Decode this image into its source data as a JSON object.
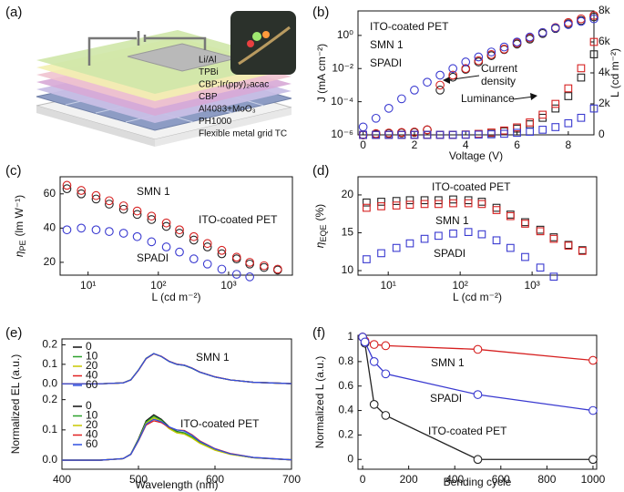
{
  "diagram": {
    "panel": "(a)",
    "layers": [
      "Li/Al",
      "TPBi",
      "CBP:Ir(ppy)₂acac",
      "CBP",
      "Al4083+MoO₃",
      "PH1000",
      "Flexible metal grid TC"
    ]
  },
  "chart_data": [
    {
      "type": "scatter",
      "panel": "(b)",
      "marker": "circle",
      "connect": false,
      "xlabel": "Voltage (V)",
      "ylabel": "J (mA cm⁻²)",
      "y2label": "L (cd m⁻²)",
      "yscale": "log",
      "xlim": [
        -0.2,
        9
      ],
      "xticks": [
        0,
        2,
        4,
        6,
        8
      ],
      "ylim": [
        1e-06,
        30
      ],
      "yticks": [
        {
          "value": 1e-06,
          "label": "10⁻⁶"
        },
        {
          "value": 0.0001,
          "label": "10⁻⁴"
        },
        {
          "value": 0.01,
          "label": "10⁻²"
        },
        {
          "value": 1,
          "label": "10⁰"
        }
      ],
      "y2lim": [
        0,
        8000
      ],
      "y2ticks": [
        0,
        {
          "value": 2000,
          "label": "2k"
        },
        {
          "value": 4000,
          "label": "4k"
        },
        {
          "value": 6000,
          "label": "6k"
        },
        {
          "value": 8000,
          "label": "8k"
        }
      ],
      "x": [
        0,
        0.5,
        1,
        1.5,
        2,
        2.5,
        3,
        3.5,
        4,
        4.5,
        5,
        5.5,
        6,
        6.5,
        7,
        7.5,
        8,
        8.5,
        9
      ],
      "series": [
        {
          "name": "ITO-coated PET",
          "color": "#222222",
          "values": [
            1e-06,
            1.1e-06,
            1.2e-06,
            1.3e-06,
            1.4e-06,
            2e-06,
            0.0005,
            0.003,
            0.009,
            0.025,
            0.06,
            0.14,
            0.3,
            0.6,
            1.3,
            2.6,
            5,
            8,
            13
          ],
          "luminance": [
            0,
            0,
            0,
            0,
            0,
            0,
            0,
            0,
            15,
            50,
            120,
            230,
            400,
            680,
            1100,
            1700,
            2500,
            3700,
            5200
          ]
        },
        {
          "name": "SMN 1",
          "color": "#d62020",
          "values": [
            1e-06,
            1.2e-06,
            1.3e-06,
            1.4e-06,
            1.5e-06,
            2e-06,
            0.001,
            0.004,
            0.01,
            0.03,
            0.07,
            0.15,
            0.35,
            0.7,
            1.5,
            3,
            6,
            10,
            16
          ],
          "luminance": [
            0,
            0,
            0,
            0,
            0,
            0,
            0,
            0,
            20,
            60,
            150,
            280,
            480,
            800,
            1300,
            2000,
            3000,
            4300,
            6000
          ]
        },
        {
          "name": "SPADI",
          "color": "#3a3ad0",
          "values": [
            3e-06,
            1e-05,
            4e-05,
            0.00015,
            0.0005,
            0.0015,
            0.004,
            0.01,
            0.025,
            0.05,
            0.1,
            0.2,
            0.4,
            0.8,
            1.5,
            2.8,
            4.5,
            7,
            10
          ],
          "luminance": [
            0,
            0,
            0,
            0,
            0,
            0,
            0,
            0,
            5,
            15,
            35,
            70,
            130,
            200,
            330,
            500,
            750,
            1100,
            1700
          ]
        }
      ],
      "annotations": [
        {
          "text": [
            "Current",
            "density"
          ]
        },
        {
          "text": [
            "Luminance"
          ]
        }
      ]
    },
    {
      "type": "scatter",
      "panel": "(c)",
      "marker": "circle",
      "connect": false,
      "xlabel": "L (cd m⁻²)",
      "ylabel": {
        "symbol": "η",
        "sub": "PE",
        "unit": "(lm W⁻¹)"
      },
      "xscale": "log",
      "xlim": [
        4,
        8100
      ],
      "xticks": [
        {
          "value": 10,
          "label": "10¹"
        },
        {
          "value": 100,
          "label": "10²"
        },
        {
          "value": 1000,
          "label": "10³"
        }
      ],
      "ylim": [
        12.5,
        70
      ],
      "yticks": [
        20,
        40,
        60
      ],
      "series": [
        {
          "name": "ITO-coated PET",
          "color": "#222222",
          "x": [
            5,
            8,
            13,
            20,
            32,
            50,
            80,
            130,
            200,
            320,
            500,
            800,
            1300,
            2000,
            3200,
            5000
          ],
          "values": [
            63,
            60,
            57,
            54,
            51,
            48,
            45,
            41,
            37,
            33,
            29,
            25,
            22,
            19,
            17,
            15.5
          ]
        },
        {
          "name": "SMN 1",
          "color": "#d62020",
          "x": [
            5,
            8,
            13,
            20,
            32,
            50,
            80,
            130,
            200,
            320,
            500,
            800,
            1300,
            2000,
            3200,
            5000
          ],
          "values": [
            65,
            62,
            59,
            56,
            53,
            50,
            47,
            43,
            39,
            35,
            31,
            27,
            23,
            20,
            18,
            16
          ]
        },
        {
          "name": "SPADI",
          "color": "#3a3ad0",
          "x": [
            5,
            8,
            13,
            20,
            32,
            50,
            80,
            130,
            200,
            320,
            500,
            800,
            1300,
            2000
          ],
          "values": [
            39,
            40,
            39,
            38,
            37,
            35,
            32,
            29,
            26,
            22,
            19,
            16,
            13,
            11.5
          ]
        }
      ]
    },
    {
      "type": "scatter",
      "panel": "(d)",
      "marker": "square",
      "connect": false,
      "xlabel": "L (cd m⁻²)",
      "ylabel": {
        "symbol": "η",
        "sub": "EQE",
        "unit": "(%)"
      },
      "xscale": "log",
      "xlim": [
        3.8,
        7900
      ],
      "xticks": [
        {
          "value": 10,
          "label": "10¹"
        },
        {
          "value": 100,
          "label": "10²"
        },
        {
          "value": 1000,
          "label": "10³"
        }
      ],
      "ylim": [
        9.4,
        22.4
      ],
      "yticks": [
        10,
        15,
        20
      ],
      "series": [
        {
          "name": "ITO-coated PET",
          "color": "#222222",
          "x": [
            5,
            8,
            13,
            20,
            32,
            50,
            80,
            130,
            200,
            320,
            500,
            800,
            1300,
            2000,
            3200,
            5000
          ],
          "values": [
            19,
            19.1,
            19.2,
            19.3,
            19.3,
            19.3,
            19.4,
            19.3,
            19.1,
            18.3,
            17.4,
            16.4,
            15.4,
            14.4,
            13.4,
            12.7
          ]
        },
        {
          "name": "SMN 1",
          "color": "#d62020",
          "x": [
            5,
            8,
            13,
            20,
            32,
            50,
            80,
            130,
            200,
            320,
            500,
            800,
            1300,
            2000,
            3200,
            5000
          ],
          "values": [
            18.3,
            18.5,
            18.6,
            18.7,
            18.8,
            18.8,
            18.9,
            18.9,
            18.8,
            18,
            17.2,
            16.2,
            15.2,
            14.2,
            13.3,
            12.6
          ]
        },
        {
          "name": "SPADI",
          "color": "#3a3ad0",
          "x": [
            5,
            8,
            13,
            20,
            32,
            50,
            80,
            130,
            200,
            320,
            500,
            800,
            1300,
            2000
          ],
          "values": [
            11.5,
            12.3,
            13,
            13.6,
            14.2,
            14.6,
            14.9,
            15.1,
            14.8,
            14,
            13,
            11.8,
            10.4,
            9.2
          ]
        }
      ]
    },
    {
      "type": "line",
      "panel": "(e)",
      "marker": "none",
      "connect": true,
      "xlabel": "Wavelength (nm)",
      "ylabel": "Normalized EL (a.u.)",
      "xlim": [
        400,
        700
      ],
      "xticks": [
        400,
        500,
        600,
        700
      ],
      "x": [
        400,
        450,
        480,
        490,
        500,
        510,
        520,
        530,
        540,
        550,
        560,
        570,
        580,
        600,
        620,
        650,
        700
      ],
      "subplots": [
        {
          "annotation": "SMN 1",
          "annotation_color": "#d62020",
          "ylim": [
            -0.05,
            0.23
          ],
          "yticks": [
            {
              "value": 0,
              "label": "0.0"
            },
            0.1,
            0.2
          ],
          "series": [
            {
              "name": "0",
              "color": "#111111",
              "values": [
                0,
                0,
                0.005,
                0.02,
                0.07,
                0.13,
                0.155,
                0.14,
                0.115,
                0.1,
                0.095,
                0.08,
                0.06,
                0.035,
                0.02,
                0.008,
                0.001
              ]
            },
            {
              "name": "10",
              "color": "#2ca02c",
              "values": [
                0,
                0,
                0.005,
                0.021,
                0.071,
                0.131,
                0.155,
                0.14,
                0.115,
                0.1,
                0.094,
                0.079,
                0.06,
                0.035,
                0.02,
                0.008,
                0.001
              ]
            },
            {
              "name": "20",
              "color": "#c8c800",
              "values": [
                0,
                0,
                0.005,
                0.02,
                0.07,
                0.13,
                0.154,
                0.14,
                0.116,
                0.101,
                0.095,
                0.08,
                0.061,
                0.035,
                0.02,
                0.008,
                0.001
              ]
            },
            {
              "name": "40",
              "color": "#e02020",
              "values": [
                0,
                0,
                0.005,
                0.02,
                0.069,
                0.129,
                0.154,
                0.141,
                0.116,
                0.101,
                0.096,
                0.081,
                0.061,
                0.036,
                0.02,
                0.008,
                0.001
              ]
            },
            {
              "name": "60",
              "color": "#3050e0",
              "values": [
                0,
                0,
                0.005,
                0.02,
                0.07,
                0.13,
                0.155,
                0.14,
                0.115,
                0.1,
                0.095,
                0.08,
                0.06,
                0.035,
                0.02,
                0.008,
                0.001
              ]
            }
          ]
        },
        {
          "annotation": "ITO-coated PET",
          "annotation_color": "#111111",
          "ylim": [
            -0.03,
            0.22
          ],
          "yticks": [
            {
              "value": 0,
              "label": "0.0"
            },
            0.1,
            0.2
          ],
          "series": [
            {
              "name": "0",
              "color": "#111111",
              "values": [
                0,
                0,
                0.005,
                0.02,
                0.07,
                0.13,
                0.15,
                0.135,
                0.11,
                0.095,
                0.09,
                0.076,
                0.058,
                0.034,
                0.02,
                0.008,
                0.001
              ]
            },
            {
              "name": "10",
              "color": "#2ca02c",
              "values": [
                0,
                0,
                0.005,
                0.02,
                0.068,
                0.126,
                0.145,
                0.132,
                0.108,
                0.094,
                0.09,
                0.077,
                0.059,
                0.035,
                0.02,
                0.008,
                0.001
              ]
            },
            {
              "name": "20",
              "color": "#c8c800",
              "values": [
                0,
                0,
                0.005,
                0.019,
                0.066,
                0.122,
                0.14,
                0.128,
                0.104,
                0.09,
                0.086,
                0.073,
                0.056,
                0.033,
                0.019,
                0.008,
                0.001
              ]
            },
            {
              "name": "40",
              "color": "#e02020",
              "values": [
                0,
                0,
                0.005,
                0.019,
                0.064,
                0.116,
                0.13,
                0.124,
                0.108,
                0.1,
                0.098,
                0.084,
                0.064,
                0.038,
                0.022,
                0.009,
                0.001
              ]
            },
            {
              "name": "60",
              "color": "#3050e0",
              "values": [
                0,
                0,
                0.005,
                0.019,
                0.065,
                0.119,
                0.135,
                0.127,
                0.11,
                0.1,
                0.096,
                0.082,
                0.062,
                0.037,
                0.021,
                0.009,
                0.001
              ]
            }
          ]
        }
      ]
    },
    {
      "type": "line",
      "panel": "(f)",
      "marker": "circle",
      "marker_fill": "#ffffff",
      "connect": true,
      "xlabel": "Bending cycle",
      "ylabel": "Normalized L (a.u.)",
      "xlim": [
        -20,
        1016
      ],
      "xticks": [
        0,
        200,
        400,
        600,
        800,
        1000
      ],
      "ylim": [
        -0.08,
        1.015
      ],
      "yticks": [
        0,
        0.2,
        0.4,
        0.6,
        0.8,
        1
      ],
      "x": [
        0,
        10,
        50,
        100,
        500,
        1000
      ],
      "series": [
        {
          "name": "ITO-coated PET",
          "color": "#222222",
          "values": [
            1,
            0.95,
            0.45,
            0.36,
            0,
            0
          ]
        },
        {
          "name": "SMN 1",
          "color": "#d62020",
          "values": [
            1,
            0.97,
            0.94,
            0.93,
            0.9,
            0.81
          ]
        },
        {
          "name": "SPADI",
          "color": "#3a3ad0",
          "values": [
            1,
            0.96,
            0.8,
            0.7,
            0.53,
            0.4
          ]
        }
      ]
    }
  ]
}
